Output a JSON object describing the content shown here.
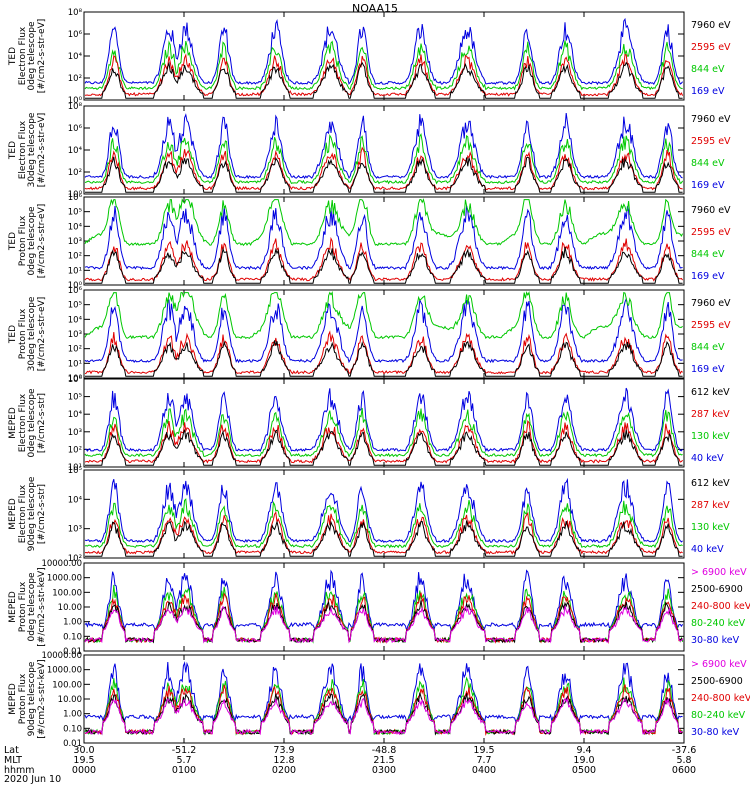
{
  "title": "NOAA15",
  "panels": [
    {
      "ylabel": [
        "TED",
        "Electron Flux",
        "0deg telescope",
        "[#/cm2-s-str-eV]"
      ],
      "yticks": [
        "10⁰",
        "10²",
        "10⁴",
        "10⁶",
        "10⁸"
      ],
      "log": true,
      "legend": [
        {
          "label": "7960 eV",
          "color": "#000000"
        },
        {
          "label": "2595 eV",
          "color": "#e00000"
        },
        {
          "label": "844 eV",
          "color": "#00c800"
        },
        {
          "label": "169 eV",
          "color": "#0000e0"
        }
      ]
    },
    {
      "ylabel": [
        "TED",
        "Electron Flux",
        "30deg telescope",
        "[#/cm2-s-str-eV]"
      ],
      "yticks": [
        "10⁰",
        "10²",
        "10⁴",
        "10⁶",
        "10⁸"
      ],
      "log": true,
      "legend": [
        {
          "label": "7960 eV",
          "color": "#000000"
        },
        {
          "label": "2595 eV",
          "color": "#e00000"
        },
        {
          "label": "844 eV",
          "color": "#00c800"
        },
        {
          "label": "169 eV",
          "color": "#0000e0"
        }
      ]
    },
    {
      "ylabel": [
        "TED",
        "Proton Flux",
        "0deg telescope",
        "[#/cm2-s-str-eV]"
      ],
      "yticks": [
        "10⁰",
        "10¹",
        "10²",
        "10³",
        "10⁴",
        "10⁵",
        "10⁶"
      ],
      "log": true,
      "legend": [
        {
          "label": "7960 eV",
          "color": "#000000"
        },
        {
          "label": "2595 eV",
          "color": "#e00000"
        },
        {
          "label": "844 eV",
          "color": "#00c800"
        },
        {
          "label": "169 eV",
          "color": "#0000e0"
        }
      ]
    },
    {
      "ylabel": [
        "TED",
        "Proton Flux",
        "30deg telescope",
        "[#/cm2-s-str-eV]"
      ],
      "yticks": [
        "10⁰",
        "10¹",
        "10²",
        "10³",
        "10⁴",
        "10⁵",
        "10⁶"
      ],
      "log": true,
      "legend": [
        {
          "label": "7960 eV",
          "color": "#000000"
        },
        {
          "label": "2595 eV",
          "color": "#e00000"
        },
        {
          "label": "844 eV",
          "color": "#00c800"
        },
        {
          "label": "169 eV",
          "color": "#0000e0"
        }
      ]
    },
    {
      "ylabel": [
        "MEPED",
        "Electron Flux",
        "0deg telescope",
        "[#/cm2-s-str]"
      ],
      "yticks": [
        "10¹",
        "10²",
        "10³",
        "10⁴",
        "10⁵",
        "10⁶"
      ],
      "log": true,
      "legend": [
        {
          "label": "612 keV",
          "color": "#000000"
        },
        {
          "label": "287 keV",
          "color": "#e00000"
        },
        {
          "label": "130 keV",
          "color": "#00c800"
        },
        {
          "label": "40 keV",
          "color": "#0000e0"
        }
      ]
    },
    {
      "ylabel": [
        "MEPED",
        "Electron Flux",
        "90deg telescope",
        "[#/cm2-s-str]"
      ],
      "yticks": [
        "10²",
        "10³",
        "10⁴",
        "10⁵"
      ],
      "log": true,
      "legend": [
        {
          "label": "612 keV",
          "color": "#000000"
        },
        {
          "label": "287 keV",
          "color": "#e00000"
        },
        {
          "label": "130 keV",
          "color": "#00c800"
        },
        {
          "label": "40 keV",
          "color": "#0000e0"
        }
      ]
    },
    {
      "ylabel": [
        "MEPED",
        "Proton Flux",
        "0deg telescope",
        "[#/cm2-s-str-keV]"
      ],
      "yticks": [
        "0.01",
        "0.10",
        "1.00",
        "10.00",
        "100.00",
        "1000.00",
        "10000.00"
      ],
      "log": true,
      "legend": [
        {
          "label": "> 6900 keV",
          "color": "#e000e0"
        },
        {
          "label": "2500-6900",
          "color": "#000000"
        },
        {
          "label": "240-800 keV",
          "color": "#e00000"
        },
        {
          "label": "80-240 keV",
          "color": "#00c800"
        },
        {
          "label": "30-80 keV",
          "color": "#0000e0"
        }
      ]
    },
    {
      "ylabel": [
        "MEPED",
        "Proton Flux",
        "90deg telescope",
        "[#/cm2-s-str-keV]"
      ],
      "yticks": [
        "0.01",
        "0.10",
        "1.00",
        "10.00",
        "100.00",
        "1000.00",
        "10000.00"
      ],
      "log": true,
      "legend": [
        {
          "label": "> 6900 keV",
          "color": "#e000e0"
        },
        {
          "label": "2500-6900",
          "color": "#000000"
        },
        {
          "label": "240-800 keV",
          "color": "#e00000"
        },
        {
          "label": "80-240 keV",
          "color": "#00c800"
        },
        {
          "label": "30-80 keV",
          "color": "#0000e0"
        }
      ]
    }
  ],
  "footer": {
    "row_labels": [
      "Lat",
      "MLT",
      "hhmm",
      "2020 Jun 10"
    ],
    "columns": [
      {
        "lat": "30.0",
        "mlt": "19.5",
        "hhmm": "0000"
      },
      {
        "lat": "-51.2",
        "mlt": "5.7",
        "hhmm": "0100"
      },
      {
        "lat": "73.9",
        "mlt": "12.8",
        "hhmm": "0200"
      },
      {
        "lat": "-48.8",
        "mlt": "21.5",
        "hhmm": "0300"
      },
      {
        "lat": "19.5",
        "mlt": "7.7",
        "hhmm": "0400"
      },
      {
        "lat": "9.4",
        "mlt": "19.0",
        "hhmm": "0500"
      },
      {
        "lat": "-37.6",
        "mlt": "5.8",
        "hhmm": "0600"
      }
    ]
  },
  "chart_data": {
    "type": "line",
    "title": "NOAA15",
    "x_axis": {
      "label": "hhmm",
      "range": [
        "0000",
        "0600"
      ],
      "ticks": [
        "0000",
        "0100",
        "0200",
        "0300",
        "0400",
        "0500",
        "0600"
      ]
    },
    "pass_peaks_hhmm": [
      "0018",
      "0051",
      "0101",
      "0124",
      "0155",
      "0228",
      "0247",
      "0322",
      "0350",
      "0426",
      "0449",
      "0525",
      "0550"
    ],
    "series_per_panel": 4,
    "note_scale": "log",
    "grid": false
  }
}
